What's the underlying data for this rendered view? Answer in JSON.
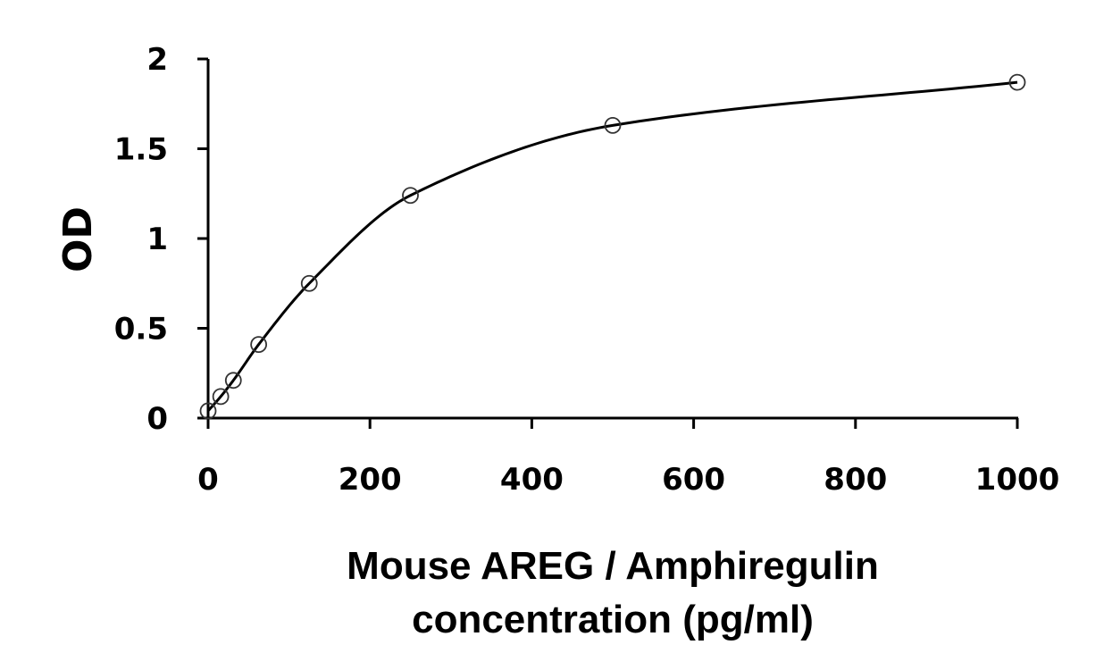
{
  "chart_data": {
    "type": "scatter",
    "title": "",
    "xlabel_lines": [
      "Mouse AREG / Amphiregulin",
      "concentration (pg/ml)"
    ],
    "ylabel": "OD",
    "xlim": [
      0,
      1000
    ],
    "ylim": [
      0,
      2
    ],
    "xticks": [
      0,
      200,
      400,
      600,
      800,
      1000
    ],
    "yticks": [
      0,
      0.5,
      1,
      1.5,
      2
    ],
    "ytick_labels": [
      "0",
      "0.5",
      "1",
      "1.5",
      "2"
    ],
    "grid": false,
    "legend": "none",
    "series": [
      {
        "marker": "open-circle",
        "fit_line": true,
        "x": [
          0,
          15.6,
          31.2,
          62.5,
          125,
          250,
          500,
          1000
        ],
        "y": [
          0.04,
          0.12,
          0.21,
          0.41,
          0.75,
          1.24,
          1.63,
          1.87
        ]
      }
    ]
  }
}
